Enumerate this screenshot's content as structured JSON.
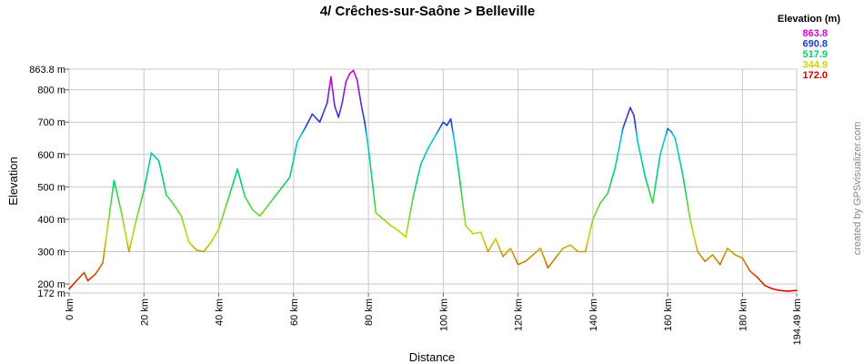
{
  "chart_data": {
    "type": "line",
    "title": "4/ Crêches-sur-Saône > Belleville",
    "xlabel": "Distance",
    "ylabel": "Elevation",
    "xlim": [
      0,
      194.49
    ],
    "ylim": [
      172,
      863.8
    ],
    "x_ticks": [
      {
        "v": 0,
        "label": "0 km"
      },
      {
        "v": 20,
        "label": "20 km"
      },
      {
        "v": 40,
        "label": "40 km"
      },
      {
        "v": 60,
        "label": "60 km"
      },
      {
        "v": 80,
        "label": "80 km"
      },
      {
        "v": 100,
        "label": "100 km"
      },
      {
        "v": 120,
        "label": "120 km"
      },
      {
        "v": 140,
        "label": "140 km"
      },
      {
        "v": 160,
        "label": "160 km"
      },
      {
        "v": 180,
        "label": "180 km"
      },
      {
        "v": 194.49,
        "label": "194.49 km"
      }
    ],
    "y_ticks": [
      {
        "v": 172,
        "label": "172 m"
      },
      {
        "v": 200,
        "label": "200 m"
      },
      {
        "v": 300,
        "label": "300 m"
      },
      {
        "v": 400,
        "label": "400 m"
      },
      {
        "v": 500,
        "label": "500 m"
      },
      {
        "v": 600,
        "label": "600 m"
      },
      {
        "v": 700,
        "label": "700 m"
      },
      {
        "v": 800,
        "label": "800 m"
      },
      {
        "v": 863.8,
        "label": "863.8 m"
      }
    ],
    "grid": true,
    "legend": {
      "title": "Elevation (m)",
      "position": "top-right",
      "items": [
        {
          "label": "863.8",
          "color": "#d800d8"
        },
        {
          "label": "690.8",
          "color": "#1a3fd8"
        },
        {
          "label": "517.9",
          "color": "#00d070"
        },
        {
          "label": "344.9",
          "color": "#c8d800"
        },
        {
          "label": "172.0",
          "color": "#d80000"
        }
      ]
    },
    "credit": "created by GPSvisualizer.com",
    "x": [
      0,
      2,
      4,
      5,
      7,
      9,
      12,
      14,
      16,
      18,
      20,
      22,
      24,
      26,
      28,
      30,
      32,
      34,
      36,
      38,
      40,
      43,
      45,
      47,
      49,
      51,
      53,
      55,
      57,
      59,
      61,
      63,
      65,
      67,
      69,
      70,
      71,
      72,
      73,
      74,
      75,
      76,
      77,
      78,
      79,
      80,
      82,
      84,
      86,
      88,
      90,
      92,
      94,
      96,
      98,
      100,
      101,
      102,
      103,
      104,
      106,
      108,
      110,
      112,
      114,
      116,
      118,
      120,
      122,
      124,
      126,
      128,
      130,
      132,
      134,
      136,
      138,
      140,
      142,
      144,
      146,
      148,
      150,
      151,
      152,
      154,
      156,
      158,
      160,
      161,
      162,
      164,
      166,
      168,
      170,
      172,
      174,
      176,
      178,
      180,
      182,
      184,
      186,
      188,
      190,
      192,
      194.49
    ],
    "y": [
      185,
      210,
      235,
      210,
      230,
      265,
      520,
      420,
      300,
      400,
      490,
      605,
      580,
      475,
      445,
      410,
      330,
      305,
      300,
      330,
      370,
      480,
      555,
      470,
      430,
      410,
      440,
      470,
      500,
      530,
      640,
      680,
      725,
      700,
      760,
      840,
      750,
      715,
      760,
      825,
      850,
      860,
      830,
      760,
      700,
      620,
      420,
      400,
      380,
      365,
      345,
      470,
      570,
      620,
      660,
      700,
      690,
      710,
      640,
      560,
      380,
      355,
      360,
      300,
      340,
      285,
      310,
      260,
      270,
      290,
      310,
      250,
      280,
      310,
      320,
      300,
      300,
      400,
      450,
      480,
      560,
      680,
      745,
      720,
      640,
      530,
      450,
      600,
      680,
      670,
      650,
      540,
      400,
      300,
      270,
      290,
      260,
      310,
      290,
      280,
      240,
      220,
      195,
      185,
      180,
      178,
      180
    ]
  }
}
